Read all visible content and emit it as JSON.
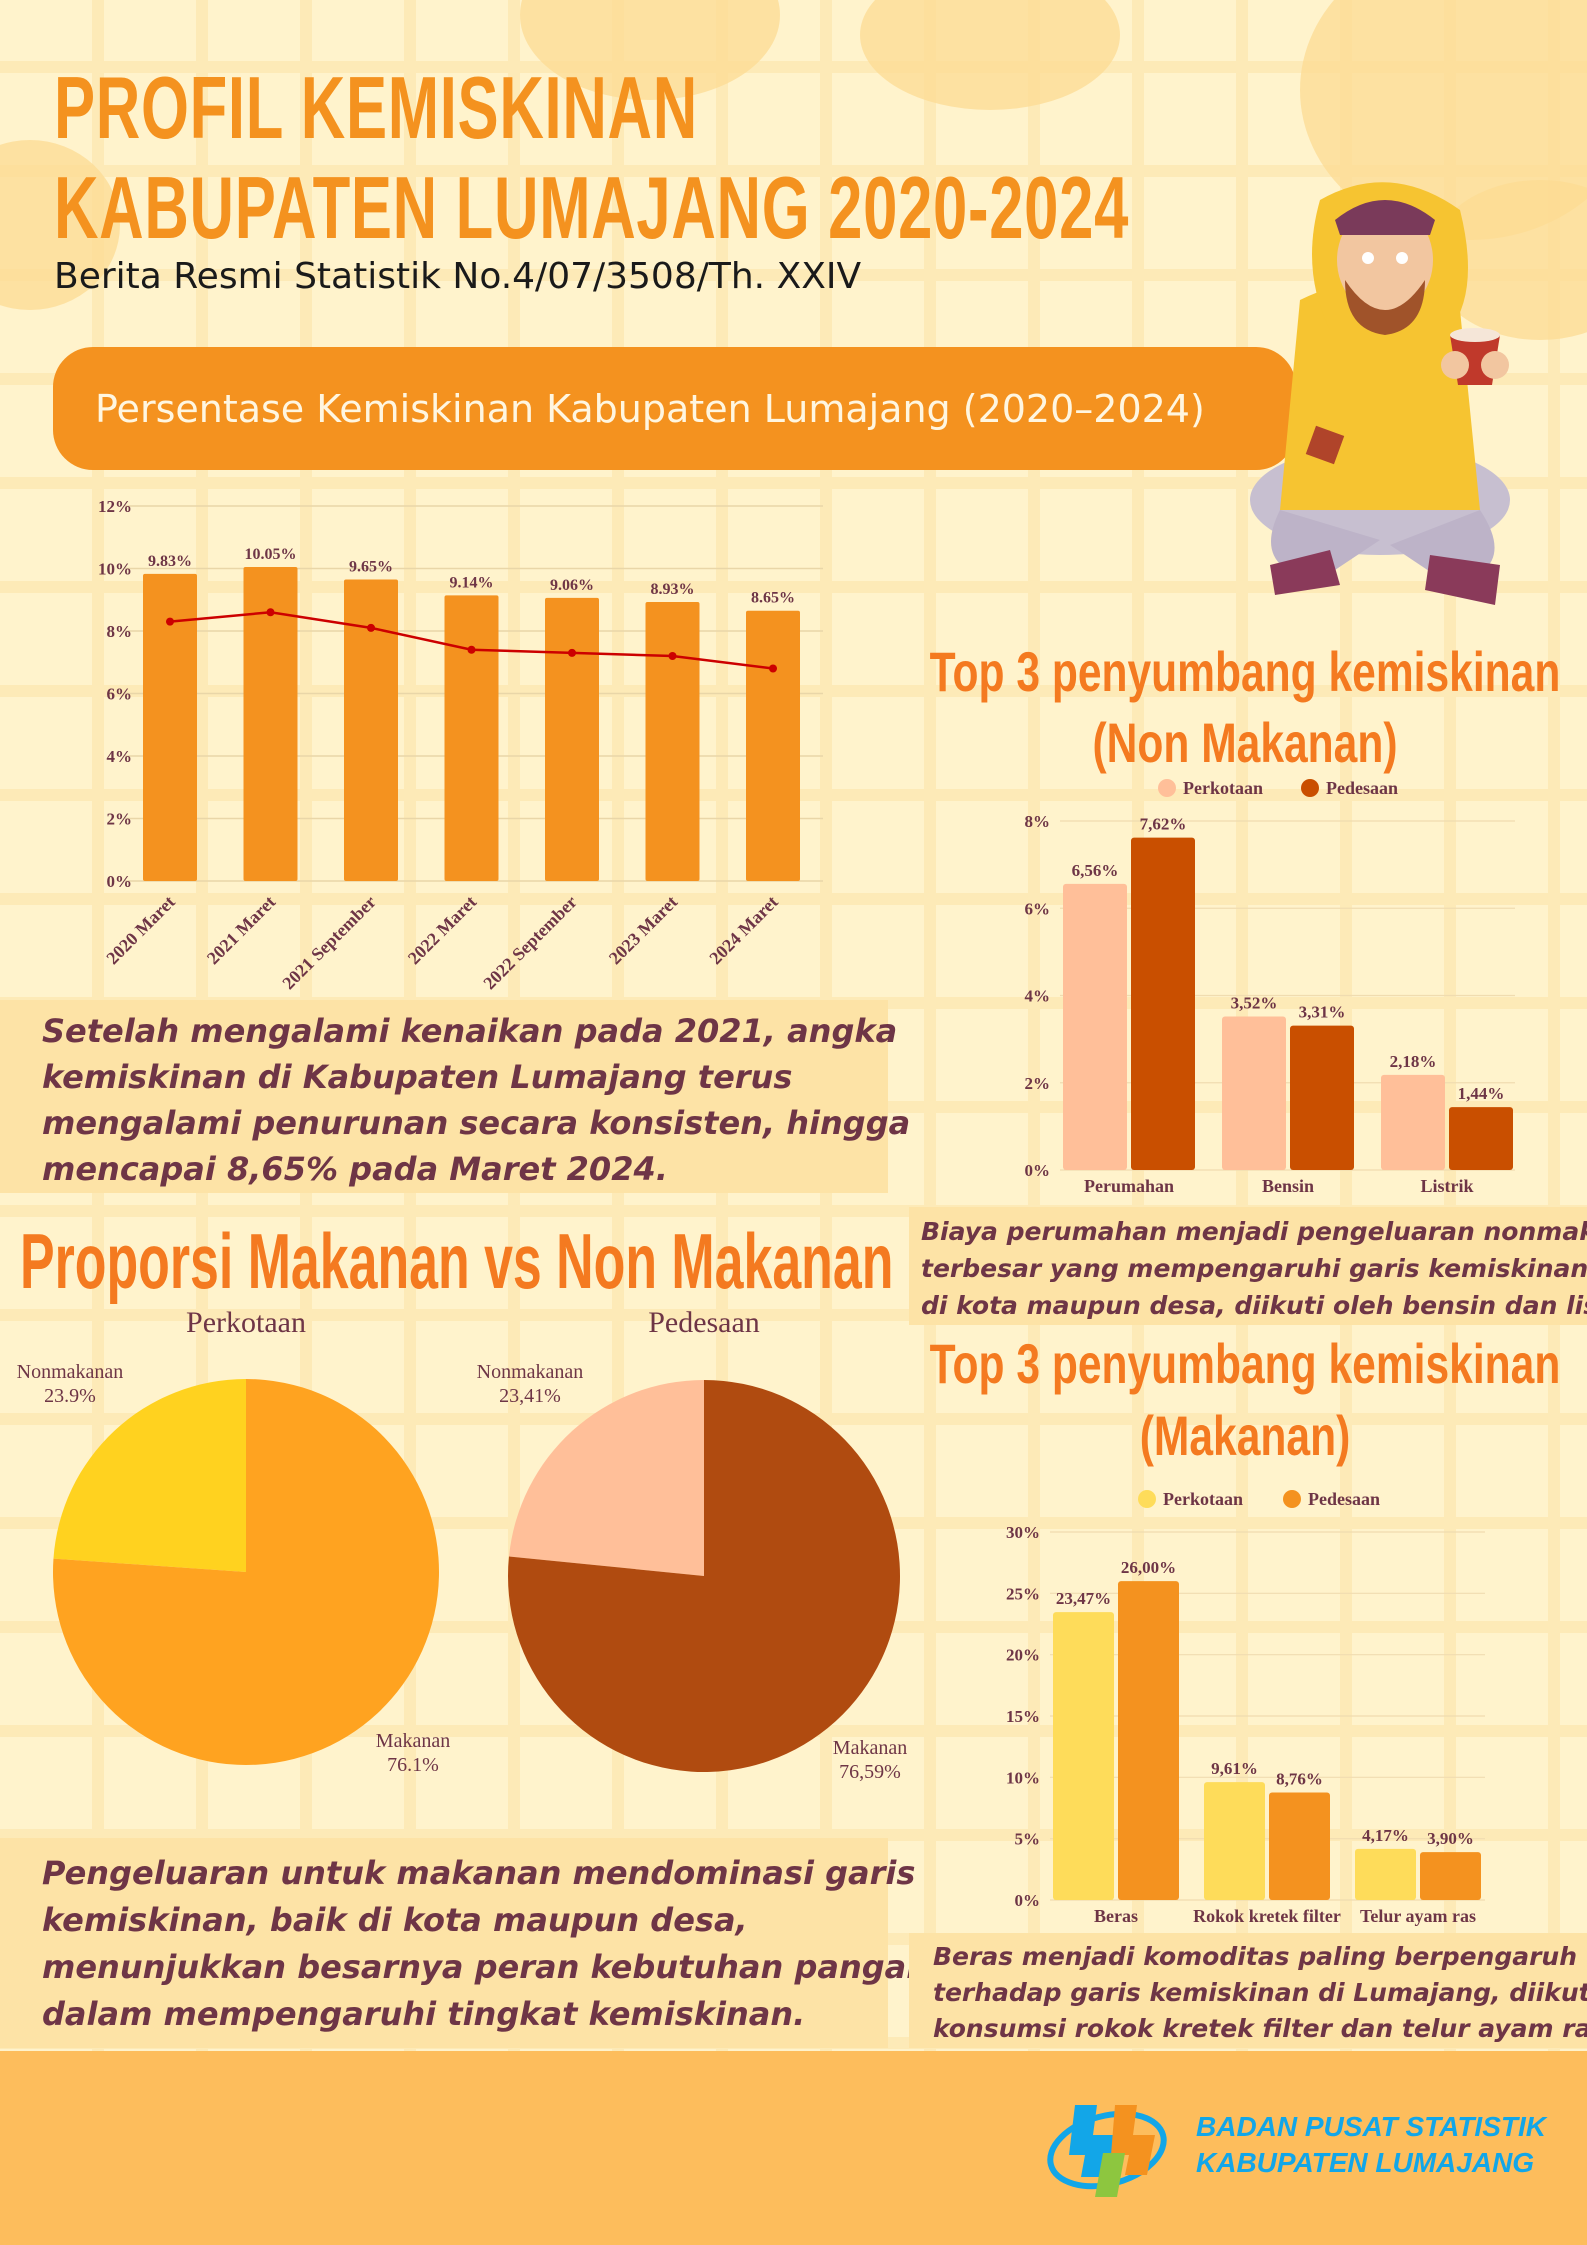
{
  "header": {
    "title_line1": "PROFIL KEMISKINAN",
    "title_line2": "KABUPATEN LUMAJANG 2020-2024",
    "subtitle": "Berita Resmi Statistik No.4/07/3508/Th. XXIV",
    "banner": "Persentase Kemiskinan Kabupaten Lumajang (2020–2024)"
  },
  "notes": {
    "trend": [
      "Setelah mengalami kenaikan pada 2021, angka",
      "kemiskinan di Kabupaten Lumajang terus",
      "mengalami penurunan secara konsisten, hingga",
      "mencapai 8,65% pada Maret 2024."
    ],
    "food": [
      "Pengeluaran untuk makanan mendominasi garis",
      "kemiskinan, baik di kota maupun desa,",
      "menunjukkan besarnya peran kebutuhan pangan",
      "dalam mempengaruhi tingkat kemiskinan."
    ],
    "nonfood_top": [
      "Biaya perumahan menjadi pengeluaran nonmakanan",
      "terbesar yang mempengaruhi garis kemiskinan, baik",
      "di kota maupun desa, diikuti oleh bensin dan listrik."
    ],
    "food_top": [
      "Beras menjadi komoditas paling berpengaruh",
      "terhadap garis kemiskinan di Lumajang, diikuti",
      "konsumsi rokok kretek filter dan telur ayam ras."
    ]
  },
  "headings": {
    "proporsi": "Proporsi Makanan vs Non Makanan",
    "top_nonfood_1": "Top 3 penyumbang kemiskinan",
    "top_nonfood_2": "(Non Makanan)",
    "top_food_1": "Top 3 penyumbang kemiskinan",
    "top_food_2": "(Makanan)"
  },
  "footer": {
    "org_line1": "BADAN PUSAT STATISTIK",
    "org_line2": "KABUPATEN LUMAJANG",
    "logo": "bps-logo"
  },
  "colors": {
    "accent": "#f4921f",
    "heading": "#f47a20",
    "text": "#6e3546",
    "line": "#cc0000"
  },
  "chart_data": [
    {
      "type": "bar",
      "categories": [
        "2020 Maret",
        "2021 Maret",
        "2021 September",
        "2022 Maret",
        "2022 September",
        "2023 Maret",
        "2024 Maret"
      ],
      "values": [
        9.83,
        10.05,
        9.65,
        9.14,
        9.06,
        8.93,
        8.65
      ],
      "data_labels": [
        "9.83%",
        "10.05%",
        "9.65%",
        "9.14%",
        "9.06%",
        "8.93%",
        "8.65%"
      ],
      "line_values": [
        8.3,
        8.6,
        8.1,
        7.4,
        7.3,
        7.2,
        6.8
      ],
      "yticks": [
        "0%",
        "2%",
        "4%",
        "6%",
        "8%",
        "10%",
        "12%"
      ],
      "ylim": [
        0,
        12
      ],
      "grid": true,
      "bar_color": "#f4921f",
      "line_color": "#cc0000"
    },
    {
      "type": "bar",
      "categories": [
        "Perumahan",
        "Bensin",
        "Listrik"
      ],
      "series": [
        {
          "name": "Perkotaan",
          "values": [
            6.56,
            3.52,
            2.18
          ],
          "labels": [
            "6,56%",
            "3,52%",
            "2,18%"
          ],
          "color": "#ffbf99"
        },
        {
          "name": "Pedesaan",
          "values": [
            7.62,
            3.31,
            1.44
          ],
          "labels": [
            "7,62%",
            "3,31%",
            "1,44%"
          ],
          "color": "#c94f00"
        }
      ],
      "yticks": [
        "0%",
        "2%",
        "4%",
        "6%",
        "8%"
      ],
      "ylim": [
        0,
        8
      ],
      "legend": "top-center",
      "grid": true
    },
    {
      "type": "bar",
      "categories": [
        "Beras",
        "Rokok kretek filter",
        "Telur ayam ras"
      ],
      "series": [
        {
          "name": "Perkotaan",
          "values": [
            23.47,
            9.61,
            4.17
          ],
          "labels": [
            "23,47%",
            "9,61%",
            "4,17%"
          ],
          "color": "#fedc5a"
        },
        {
          "name": "Pedesaan",
          "values": [
            26.0,
            8.76,
            3.9
          ],
          "labels": [
            "26,00%",
            "8,76%",
            "3,90%"
          ],
          "color": "#f4921f"
        }
      ],
      "yticks": [
        "0%",
        "5%",
        "10%",
        "15%",
        "20%",
        "25%",
        "30%"
      ],
      "ylim": [
        0,
        30
      ],
      "legend": "top-center",
      "grid": true
    },
    {
      "type": "pie",
      "title": "Perkotaan",
      "slices": [
        {
          "name": "Nonmakanan",
          "value": 23.9,
          "label": "23.9%",
          "color": "#ffd21f"
        },
        {
          "name": "Makanan",
          "value": 76.1,
          "label": "76.1%",
          "color": "#ffa320"
        }
      ]
    },
    {
      "type": "pie",
      "title": "Pedesaan",
      "slices": [
        {
          "name": "Nonmakanan",
          "value": 23.41,
          "label": "23,41%",
          "color": "#ffbf99"
        },
        {
          "name": "Makanan",
          "value": 76.59,
          "label": "76,59%",
          "color": "#b04b10"
        }
      ]
    }
  ]
}
